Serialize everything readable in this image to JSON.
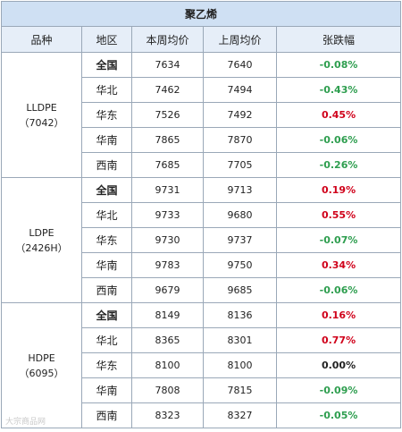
{
  "title": "聚乙烯",
  "headers": [
    "品种",
    "地区",
    "本周均价",
    "上周均价",
    "张跌幅"
  ],
  "groups": [
    {
      "product": "LLDPE",
      "grade": "（7042）",
      "rows": [
        {
          "region": "全国",
          "bold": true,
          "this_week": "7634",
          "last_week": "7640",
          "change": "-0.08%",
          "dir": "down"
        },
        {
          "region": "华北",
          "bold": false,
          "this_week": "7462",
          "last_week": "7494",
          "change": "-0.43%",
          "dir": "down"
        },
        {
          "region": "华东",
          "bold": false,
          "this_week": "7526",
          "last_week": "7492",
          "change": "0.45%",
          "dir": "up"
        },
        {
          "region": "华南",
          "bold": false,
          "this_week": "7865",
          "last_week": "7870",
          "change": "-0.06%",
          "dir": "down"
        },
        {
          "region": "西南",
          "bold": false,
          "this_week": "7685",
          "last_week": "7705",
          "change": "-0.26%",
          "dir": "down"
        }
      ]
    },
    {
      "product": "LDPE",
      "grade": "（2426H）",
      "rows": [
        {
          "region": "全国",
          "bold": true,
          "this_week": "9731",
          "last_week": "9713",
          "change": "0.19%",
          "dir": "up"
        },
        {
          "region": "华北",
          "bold": false,
          "this_week": "9733",
          "last_week": "9680",
          "change": "0.55%",
          "dir": "up"
        },
        {
          "region": "华东",
          "bold": false,
          "this_week": "9730",
          "last_week": "9737",
          "change": "-0.07%",
          "dir": "down"
        },
        {
          "region": "华南",
          "bold": false,
          "this_week": "9783",
          "last_week": "9750",
          "change": "0.34%",
          "dir": "up"
        },
        {
          "region": "西南",
          "bold": false,
          "this_week": "9679",
          "last_week": "9685",
          "change": "-0.06%",
          "dir": "down"
        }
      ]
    },
    {
      "product": "HDPE",
      "grade": "（6095）",
      "rows": [
        {
          "region": "全国",
          "bold": true,
          "this_week": "8149",
          "last_week": "8136",
          "change": "0.16%",
          "dir": "up"
        },
        {
          "region": "华北",
          "bold": false,
          "this_week": "8365",
          "last_week": "8301",
          "change": "0.77%",
          "dir": "up"
        },
        {
          "region": "华东",
          "bold": false,
          "this_week": "8100",
          "last_week": "8100",
          "change": "0.00%",
          "dir": "flat"
        },
        {
          "region": "华南",
          "bold": false,
          "this_week": "7808",
          "last_week": "7815",
          "change": "-0.09%",
          "dir": "down"
        },
        {
          "region": "西南",
          "bold": false,
          "this_week": "8323",
          "last_week": "8327",
          "change": "-0.05%",
          "dir": "down"
        }
      ]
    }
  ],
  "colors": {
    "up": "#d0021b",
    "down": "#2e9e4f",
    "title_bg": "#cfe0f3",
    "header_bg": "#e6eef8",
    "border": "#9aa8b8"
  },
  "watermark": "大宗商品网"
}
